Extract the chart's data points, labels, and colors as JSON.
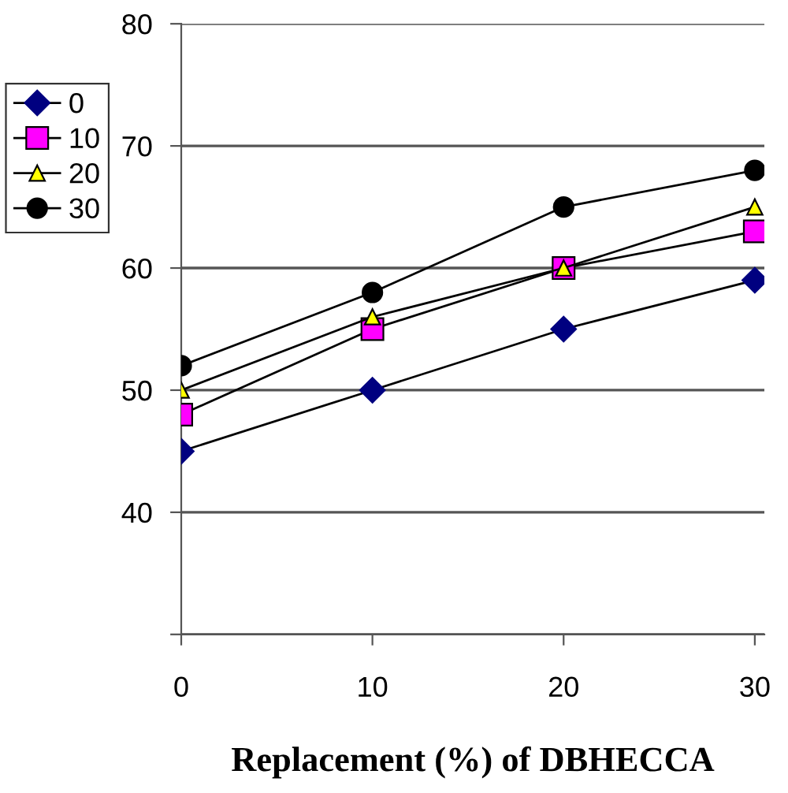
{
  "chart_data": {
    "type": "line",
    "xlabel": "Replacement (%) of DBHECCA",
    "categories": [
      "0",
      "10",
      "20",
      "30"
    ],
    "series": [
      {
        "name": "0",
        "color": "#000080",
        "marker": "diamond",
        "values": [
          45,
          50,
          55,
          59
        ]
      },
      {
        "name": "10",
        "color": "#ff00ff",
        "marker": "square",
        "values": [
          48,
          55,
          60,
          63
        ]
      },
      {
        "name": "20",
        "color": "#ffff00",
        "marker": "triangle",
        "values": [
          50,
          56,
          60,
          65
        ]
      },
      {
        "name": "30",
        "color": "#000000",
        "marker": "circle",
        "values": [
          52,
          58,
          65,
          68
        ]
      }
    ],
    "ylim": [
      30,
      80
    ],
    "yticks": [
      {
        "value": 30,
        "label": null
      },
      40,
      50,
      60,
      70,
      80
    ],
    "grid": "y",
    "legend": "left",
    "line_style": "solid"
  }
}
